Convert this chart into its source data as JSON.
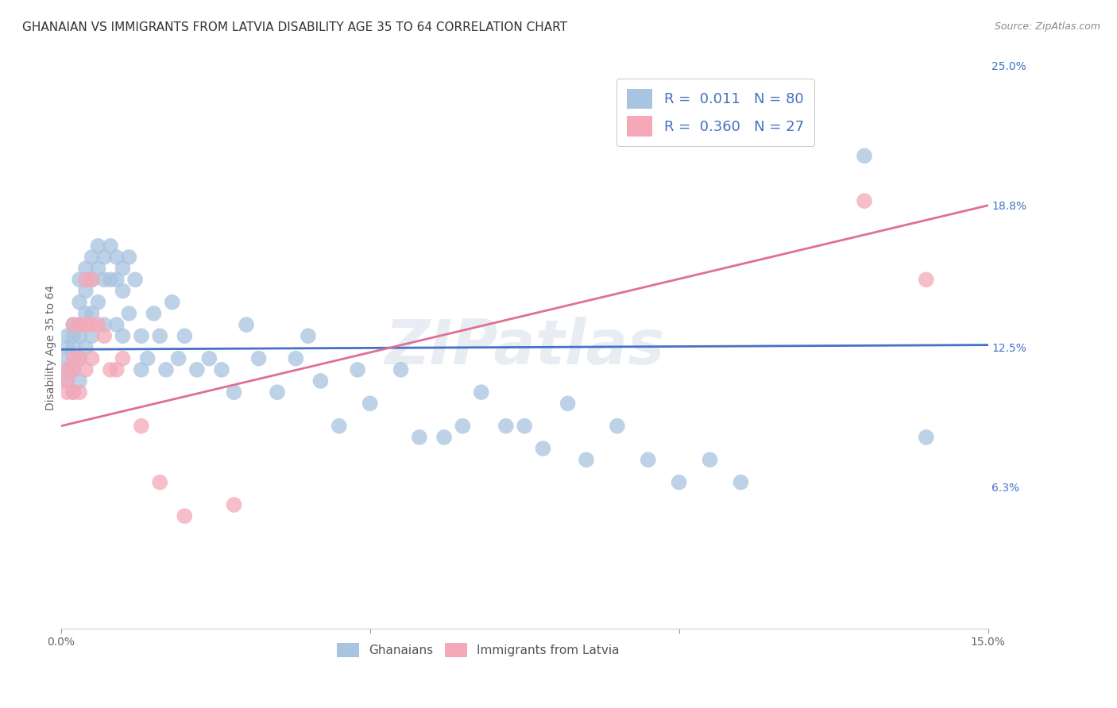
{
  "title": "GHANAIAN VS IMMIGRANTS FROM LATVIA DISABILITY AGE 35 TO 64 CORRELATION CHART",
  "source": "Source: ZipAtlas.com",
  "ylabel": "Disability Age 35 to 64",
  "xlim": [
    0.0,
    0.15
  ],
  "ylim": [
    0.0,
    0.25
  ],
  "ytick_labels_right": [
    "25.0%",
    "18.8%",
    "12.5%",
    "6.3%",
    ""
  ],
  "ytick_positions_right": [
    0.25,
    0.188,
    0.125,
    0.063,
    0.0
  ],
  "watermark": "ZIPatlas",
  "legend_blue_r": "0.011",
  "legend_blue_n": "80",
  "legend_pink_r": "0.360",
  "legend_pink_n": "27",
  "legend_label_blue": "Ghanaians",
  "legend_label_pink": "Immigrants from Latvia",
  "blue_color": "#a8c4e0",
  "pink_color": "#f4a8b8",
  "line_blue_color": "#4472c4",
  "line_pink_color": "#e07090",
  "blue_scatter": {
    "x": [
      0.001,
      0.001,
      0.001,
      0.001,
      0.001,
      0.002,
      0.002,
      0.002,
      0.002,
      0.002,
      0.003,
      0.003,
      0.003,
      0.003,
      0.003,
      0.003,
      0.004,
      0.004,
      0.004,
      0.004,
      0.005,
      0.005,
      0.005,
      0.005,
      0.006,
      0.006,
      0.006,
      0.007,
      0.007,
      0.007,
      0.008,
      0.008,
      0.009,
      0.009,
      0.009,
      0.01,
      0.01,
      0.01,
      0.011,
      0.011,
      0.012,
      0.013,
      0.013,
      0.014,
      0.015,
      0.016,
      0.017,
      0.018,
      0.019,
      0.02,
      0.022,
      0.024,
      0.026,
      0.028,
      0.03,
      0.032,
      0.035,
      0.038,
      0.04,
      0.042,
      0.045,
      0.048,
      0.05,
      0.055,
      0.058,
      0.062,
      0.065,
      0.068,
      0.072,
      0.075,
      0.078,
      0.082,
      0.085,
      0.09,
      0.095,
      0.1,
      0.105,
      0.11,
      0.13,
      0.14
    ],
    "y": [
      0.13,
      0.125,
      0.12,
      0.115,
      0.11,
      0.135,
      0.13,
      0.125,
      0.115,
      0.105,
      0.155,
      0.145,
      0.135,
      0.13,
      0.12,
      0.11,
      0.16,
      0.15,
      0.14,
      0.125,
      0.165,
      0.155,
      0.14,
      0.13,
      0.17,
      0.16,
      0.145,
      0.165,
      0.155,
      0.135,
      0.17,
      0.155,
      0.165,
      0.155,
      0.135,
      0.16,
      0.15,
      0.13,
      0.165,
      0.14,
      0.155,
      0.13,
      0.115,
      0.12,
      0.14,
      0.13,
      0.115,
      0.145,
      0.12,
      0.13,
      0.115,
      0.12,
      0.115,
      0.105,
      0.135,
      0.12,
      0.105,
      0.12,
      0.13,
      0.11,
      0.09,
      0.115,
      0.1,
      0.115,
      0.085,
      0.085,
      0.09,
      0.105,
      0.09,
      0.09,
      0.08,
      0.1,
      0.075,
      0.09,
      0.075,
      0.065,
      0.075,
      0.065,
      0.21,
      0.085
    ]
  },
  "pink_scatter": {
    "x": [
      0.001,
      0.001,
      0.001,
      0.002,
      0.002,
      0.002,
      0.002,
      0.003,
      0.003,
      0.003,
      0.004,
      0.004,
      0.004,
      0.005,
      0.005,
      0.005,
      0.006,
      0.007,
      0.008,
      0.009,
      0.01,
      0.013,
      0.016,
      0.02,
      0.028,
      0.13,
      0.14
    ],
    "y": [
      0.115,
      0.11,
      0.105,
      0.135,
      0.12,
      0.115,
      0.105,
      0.135,
      0.12,
      0.105,
      0.155,
      0.135,
      0.115,
      0.155,
      0.135,
      0.12,
      0.135,
      0.13,
      0.115,
      0.115,
      0.12,
      0.09,
      0.065,
      0.05,
      0.055,
      0.19,
      0.155
    ]
  },
  "blue_line": {
    "x0": 0.0,
    "x1": 0.15,
    "y0": 0.124,
    "y1": 0.126
  },
  "pink_line": {
    "x0": 0.0,
    "x1": 0.15,
    "y0": 0.09,
    "y1": 0.188
  },
  "background_color": "#ffffff",
  "grid_color": "#cccccc",
  "title_fontsize": 11,
  "axis_label_fontsize": 10,
  "tick_fontsize": 10
}
